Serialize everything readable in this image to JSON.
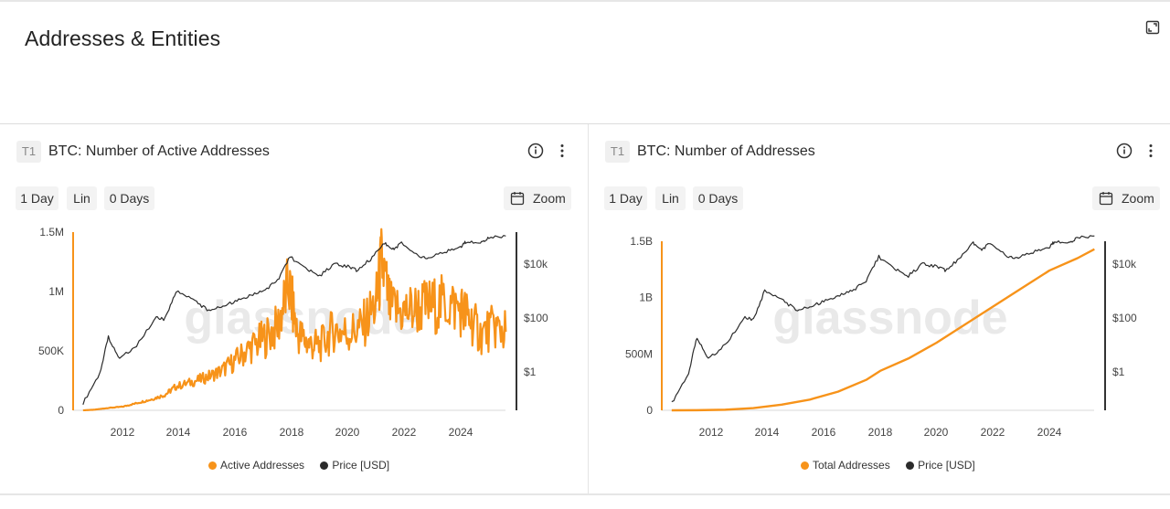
{
  "section": {
    "title": "Addresses & Entities",
    "expand_icon": "expand-icon"
  },
  "colors": {
    "accent": "#f7931a",
    "price": "#2b2b2b",
    "axis": "#f7931a",
    "grid": "#e8e8e8",
    "watermark": "#e9e9e9"
  },
  "watermark": "glassnode",
  "panels": [
    {
      "tier": "T1",
      "title": "BTC: Number of Active Addresses",
      "controls": {
        "interval": "1 Day",
        "scale": "Lin",
        "ma": "0 Days",
        "zoom": "Zoom"
      },
      "legend": [
        {
          "label": "Active Addresses",
          "color": "#f7931a"
        },
        {
          "label": "Price [USD]",
          "color": "#2b2b2b"
        }
      ],
      "chart_data": {
        "type": "line",
        "x_ticks": [
          "2012",
          "2014",
          "2016",
          "2018",
          "2020",
          "2022",
          "2024"
        ],
        "y_left_ticks": [
          "0",
          "500K",
          "1M",
          "1.5M"
        ],
        "y_right_ticks": [
          "$1",
          "$100",
          "$10k"
        ],
        "y_right_scale": "log",
        "series": [
          {
            "name": "Active Addresses",
            "axis": "left",
            "x": [
              2010.6,
              2011.0,
              2011.5,
              2012.0,
              2012.5,
              2013.0,
              2013.5,
              2013.9,
              2014.5,
              2015.0,
              2015.5,
              2016.0,
              2016.5,
              2017.0,
              2017.5,
              2017.9,
              2018.2,
              2018.6,
              2019.0,
              2019.5,
              2020.0,
              2020.5,
              2021.0,
              2021.2,
              2021.5,
              2022.0,
              2022.5,
              2023.0,
              2023.5,
              2024.0,
              2024.3,
              2024.7,
              2025.2,
              2025.6
            ],
            "y": [
              0,
              5000,
              20000,
              30000,
              60000,
              90000,
              130000,
              200000,
              240000,
              280000,
              330000,
              420000,
              520000,
              600000,
              700000,
              1050000,
              650000,
              560000,
              540000,
              680000,
              650000,
              700000,
              900000,
              1250000,
              850000,
              830000,
              860000,
              880000,
              900000,
              850000,
              780000,
              640000,
              700000,
              660000
            ]
          },
          {
            "name": "Price [USD]",
            "axis": "right",
            "x": [
              2010.6,
              2011.2,
              2011.5,
              2011.9,
              2012.5,
              2013.2,
              2013.5,
              2013.9,
              2014.5,
              2015.0,
              2015.5,
              2016.0,
              2016.5,
              2017.0,
              2017.5,
              2017.95,
              2018.5,
              2019.0,
              2019.5,
              2020.0,
              2020.3,
              2020.8,
              2021.3,
              2021.6,
              2021.9,
              2022.5,
              2022.9,
              2023.5,
              2024.0,
              2024.2,
              2024.7,
              2025.0,
              2025.6
            ],
            "y": [
              0.07,
              0.9,
              20,
              3,
              10,
              100,
              90,
              1000,
              500,
              200,
              250,
              420,
              650,
              1000,
              2500,
              19000,
              6500,
              3700,
              10000,
              8000,
              6000,
              15000,
              60000,
              35000,
              60000,
              20000,
              17000,
              30000,
              45000,
              70000,
              60000,
              95000,
              110000
            ]
          }
        ]
      }
    },
    {
      "tier": "T1",
      "title": "BTC: Number of Addresses",
      "controls": {
        "interval": "1 Day",
        "scale": "Lin",
        "ma": "0 Days",
        "zoom": "Zoom"
      },
      "legend": [
        {
          "label": "Total Addresses",
          "color": "#f7931a"
        },
        {
          "label": "Price [USD]",
          "color": "#2b2b2b"
        }
      ],
      "chart_data": {
        "type": "line",
        "x_ticks": [
          "2012",
          "2014",
          "2016",
          "2018",
          "2020",
          "2022",
          "2024"
        ],
        "y_left_ticks": [
          "0",
          "500M",
          "1B",
          "1.5B"
        ],
        "y_right_ticks": [
          "$1",
          "$100",
          "$10k"
        ],
        "y_right_scale": "log",
        "series": [
          {
            "name": "Total Addresses",
            "axis": "left",
            "x": [
              2010.6,
              2011.5,
              2012.5,
              2013.5,
              2014.5,
              2015.5,
              2016.5,
              2017.5,
              2018.0,
              2019.0,
              2020.0,
              2021.0,
              2022.0,
              2023.0,
              2024.0,
              2025.0,
              2025.6
            ],
            "y": [
              0,
              1000000,
              5000000,
              20000000,
              50000000,
              95000000,
              165000000,
              270000000,
              350000000,
              460000000,
              600000000,
              760000000,
              920000000,
              1080000000,
              1240000000,
              1350000000,
              1430000000
            ]
          },
          {
            "name": "Price [USD]",
            "axis": "right",
            "x": [
              2010.6,
              2011.2,
              2011.5,
              2011.9,
              2012.5,
              2013.2,
              2013.5,
              2013.9,
              2014.5,
              2015.0,
              2015.5,
              2016.0,
              2016.5,
              2017.0,
              2017.5,
              2017.95,
              2018.5,
              2019.0,
              2019.5,
              2020.0,
              2020.3,
              2020.8,
              2021.3,
              2021.6,
              2021.9,
              2022.5,
              2022.9,
              2023.5,
              2024.0,
              2024.2,
              2024.7,
              2025.0,
              2025.6
            ],
            "y": [
              0.07,
              0.9,
              20,
              3,
              10,
              100,
              90,
              1000,
              500,
              200,
              250,
              420,
              650,
              1000,
              2500,
              19000,
              6500,
              3700,
              10000,
              8000,
              6000,
              15000,
              60000,
              35000,
              60000,
              20000,
              17000,
              30000,
              45000,
              70000,
              60000,
              95000,
              110000
            ]
          }
        ]
      }
    }
  ]
}
